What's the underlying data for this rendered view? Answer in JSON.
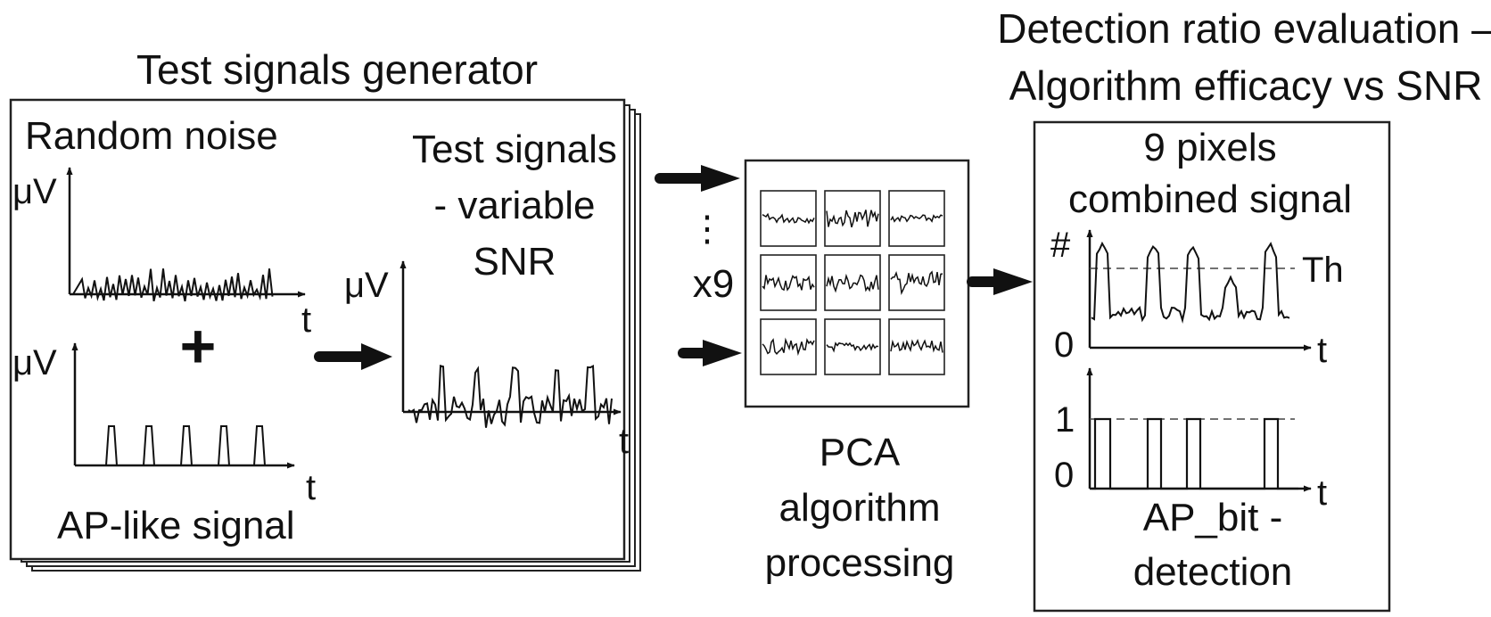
{
  "generator": {
    "title": "Test signals generator",
    "noise": {
      "label": "Random noise",
      "y_unit": "μV",
      "x_unit": "t"
    },
    "plus": "+",
    "ap_signal": {
      "label": "AP-like signal",
      "y_unit": "μV",
      "x_unit": "t"
    },
    "test_signals": {
      "label_lines": [
        "Test signals",
        "- variable",
        "SNR"
      ],
      "y_unit": "μV",
      "x_unit": "t"
    }
  },
  "pca": {
    "ellipsis": "⋮",
    "multiplier": "x9",
    "label_lines": [
      "PCA",
      "algorithm",
      "processing"
    ],
    "grid": {
      "rows": 3,
      "cols": 3
    }
  },
  "evaluation": {
    "title_lines": [
      "Detection ratio evaluation –",
      "Algorithm efficacy vs SNR"
    ],
    "combined": {
      "label_lines": [
        "9 pixels",
        "combined signal"
      ],
      "y_unit": "#",
      "y_zero": "0",
      "x_unit": "t",
      "threshold": "Th"
    },
    "bit_plot": {
      "y_one": "1",
      "y_zero": "0",
      "x_unit": "t"
    },
    "detection_label_lines": [
      "AP_bit -",
      "detection"
    ]
  }
}
